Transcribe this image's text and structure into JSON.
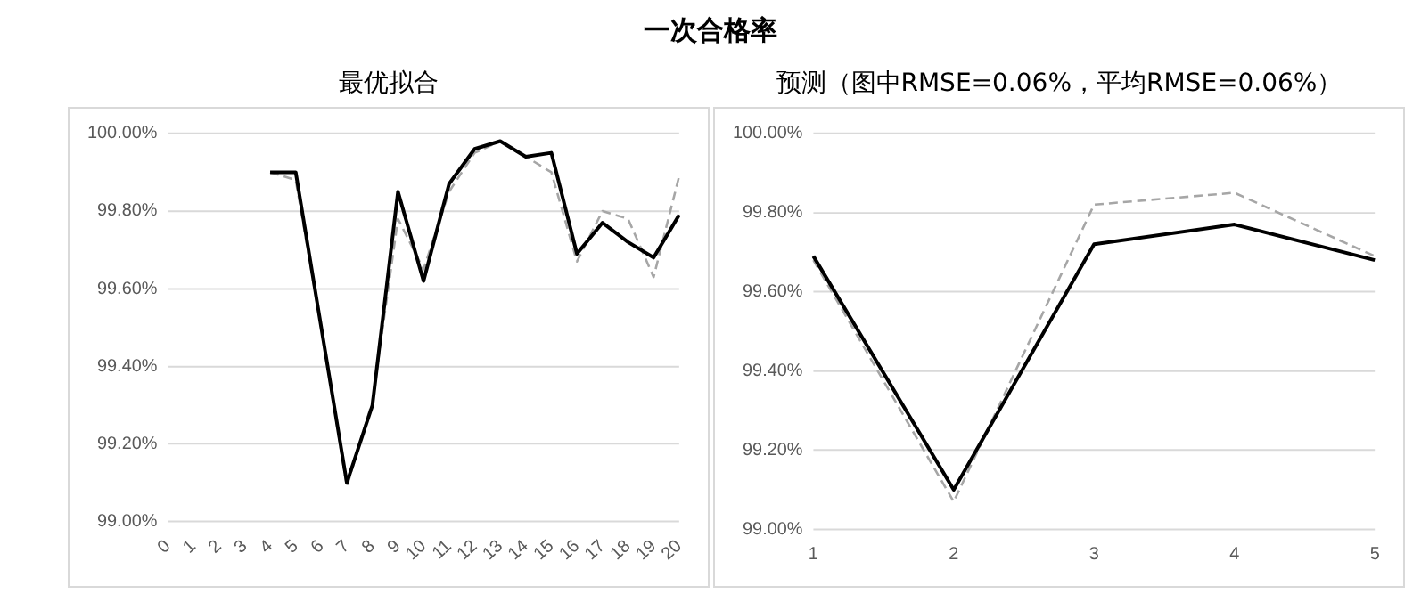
{
  "chart_data": [
    {
      "type": "line",
      "title": "一次合格率",
      "subtitle": "最优拟合",
      "categories": [
        "0",
        "1",
        "2",
        "3",
        "4",
        "5",
        "6",
        "7",
        "8",
        "9",
        "10",
        "11",
        "12",
        "13",
        "14",
        "15",
        "16",
        "17",
        "18",
        "19",
        "20"
      ],
      "series": [
        {
          "color": "#000000",
          "line_style": "solid",
          "values": [
            null,
            null,
            null,
            null,
            99.9,
            99.9,
            99.5,
            99.1,
            99.3,
            99.85,
            99.62,
            99.87,
            99.96,
            99.98,
            99.94,
            99.95,
            99.69,
            99.77,
            99.72,
            99.68,
            99.79
          ]
        },
        {
          "color": "#a6a6a6",
          "line_style": "dashed",
          "values": [
            null,
            null,
            null,
            null,
            99.9,
            99.88,
            99.5,
            99.09,
            99.31,
            99.78,
            99.65,
            99.85,
            99.95,
            99.98,
            99.94,
            99.9,
            99.67,
            99.8,
            99.78,
            99.63,
            99.89
          ]
        }
      ],
      "ylim": [
        99,
        100
      ],
      "yticks": [
        {
          "value": 99,
          "label": "99.00%"
        },
        {
          "value": 99.2,
          "label": "99.20%"
        },
        {
          "value": 99.4,
          "label": "99.40%"
        },
        {
          "value": 99.6,
          "label": "99.60%"
        },
        {
          "value": 99.8,
          "label": "99.80%"
        },
        {
          "value": 100,
          "label": "100.00%"
        }
      ],
      "grid": "y",
      "marker": "none"
    },
    {
      "type": "line",
      "subtitle": "预测（图中RMSE=0.06%，平均RMSE=0.06%）",
      "categories": [
        "1",
        "2",
        "3",
        "4",
        "5"
      ],
      "series": [
        {
          "color": "#000000",
          "line_style": "solid",
          "values": [
            99.69,
            99.1,
            99.72,
            99.77,
            99.68
          ]
        },
        {
          "color": "#a6a6a6",
          "line_style": "dashed",
          "values": [
            99.68,
            99.07,
            99.82,
            99.85,
            99.69
          ]
        }
      ],
      "ylim": [
        99,
        100
      ],
      "yticks": [
        {
          "value": 99,
          "label": "99.00%"
        },
        {
          "value": 99.2,
          "label": "99.20%"
        },
        {
          "value": 99.4,
          "label": "99.40%"
        },
        {
          "value": 99.6,
          "label": "99.60%"
        },
        {
          "value": 99.8,
          "label": "99.80%"
        },
        {
          "value": 100,
          "label": "100.00%"
        }
      ],
      "grid": "y",
      "marker": "none"
    }
  ]
}
